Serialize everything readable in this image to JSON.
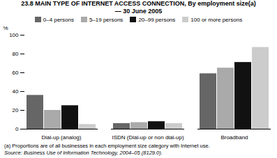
{
  "chart_data": {
    "type": "bar",
    "title": "23.8  MAIN TYPE OF INTERNET ACCESS CONNECTION, By employment size(a)",
    "subtitle": "— 30 June 2005",
    "annotations": [
      "(a) Proportions are of all businesses in each employment size category with Internet use.",
      "Source:  Business Use of Information Technology,  2004–05 (8129.0)."
    ],
    "ylabel": "%",
    "categories": [
      "Dial-up (analog)",
      "ISDN (Dial-up or non dial-up)",
      "Broadband"
    ],
    "series": [
      {
        "name": "0–4 persons",
        "color": "#666666",
        "values": [
          36,
          6,
          59
        ]
      },
      {
        "name": "5–19 persons",
        "color": "#aaaaaa",
        "values": [
          20,
          7,
          65
        ]
      },
      {
        "name": "20–99 persons",
        "color": "#111111",
        "values": [
          25,
          8,
          71
        ]
      },
      {
        "name": "100 or more persons",
        "color": "#cccccc",
        "values": [
          5,
          6,
          87
        ]
      }
    ],
    "ylim": [
      0,
      100
    ],
    "yticks": [
      0,
      20,
      40,
      60,
      80,
      100
    ],
    "grid": false,
    "legend": "top"
  }
}
